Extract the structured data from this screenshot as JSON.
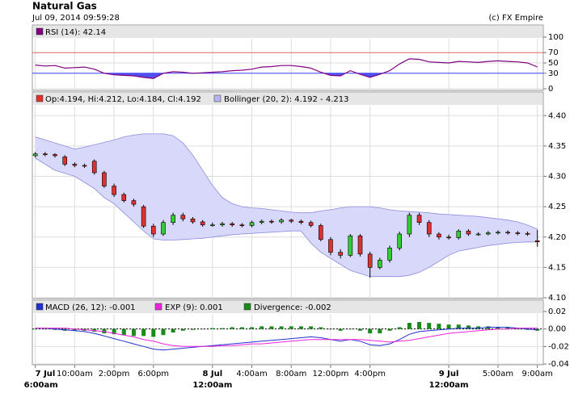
{
  "header": {
    "title": "Natural Gas",
    "timestamp": "Jul 09, 2014 09:59:28",
    "source": "(c) FX Empire"
  },
  "chart_data": [
    {
      "type": "line",
      "ylim": [
        0,
        100
      ],
      "yticks": [
        0,
        30,
        50,
        70,
        100
      ],
      "grid": true,
      "ref_lines": [
        {
          "value": 70,
          "color": "#e07070"
        },
        {
          "value": 30,
          "color": "#4040ff"
        }
      ],
      "fill_below": {
        "value": 30,
        "color": "#5050f0"
      },
      "series": [
        {
          "name": "RSI (14): 42.14",
          "color": "#800080",
          "values": [
            46,
            44,
            45,
            40,
            41,
            42,
            38,
            30,
            27,
            26,
            25,
            22,
            20,
            30,
            33,
            32,
            30,
            31,
            32,
            33,
            35,
            36,
            38,
            42,
            43,
            45,
            45,
            43,
            40,
            32,
            26,
            25,
            35,
            28,
            22,
            28,
            35,
            48,
            58,
            57,
            52,
            51,
            50,
            53,
            52,
            51,
            53,
            54,
            53,
            52,
            50,
            42.14
          ]
        }
      ]
    },
    {
      "type": "candlestick",
      "ylim": [
        4.1,
        4.415
      ],
      "yticks": [
        {
          "value": 4.1,
          "label": "4.10"
        },
        {
          "value": 4.15,
          "label": "4.15"
        },
        {
          "value": 4.2,
          "label": "4.20"
        },
        {
          "value": 4.25,
          "label": "4.25"
        },
        {
          "value": 4.3,
          "label": "4.30"
        },
        {
          "value": 4.35,
          "label": "4.35"
        },
        {
          "value": 4.4,
          "label": "4.40"
        }
      ],
      "grid": true,
      "xlim": [
        -0.3,
        51.6
      ],
      "x": [
        0,
        1,
        2,
        3,
        4,
        5,
        6,
        7,
        8,
        9,
        10,
        11,
        12,
        13,
        14,
        15,
        16,
        17,
        18,
        19,
        20,
        21,
        22,
        23,
        24,
        25,
        26,
        27,
        28,
        29,
        30,
        31,
        32,
        33,
        34,
        35,
        36,
        37,
        38,
        39,
        40,
        41,
        42,
        43,
        44,
        45,
        46,
        47,
        48,
        49,
        50,
        51
      ],
      "series": [
        {
          "name": "Op:4.194, Hi:4.212, Lo:4.184, Cl:4.192",
          "color": "#e03030",
          "up_color": "#33cc33",
          "down_color": "#e03030",
          "open": [
            4.334,
            4.337,
            4.336,
            4.332,
            4.32,
            4.318,
            4.325,
            4.306,
            4.284,
            4.27,
            4.26,
            4.25,
            4.218,
            4.205,
            4.224,
            4.236,
            4.23,
            4.225,
            4.22,
            4.22,
            4.222,
            4.22,
            4.219,
            4.224,
            4.226,
            4.225,
            4.228,
            4.226,
            4.224,
            4.219,
            4.196,
            4.175,
            4.17,
            4.202,
            4.172,
            4.15,
            4.162,
            4.182,
            4.205,
            4.236,
            4.224,
            4.205,
            4.2,
            4.199,
            4.21,
            4.205,
            4.205,
            4.207,
            4.208,
            4.207,
            4.206,
            4.194
          ],
          "high": [
            4.34,
            4.34,
            4.338,
            4.335,
            4.323,
            4.321,
            4.328,
            4.309,
            4.288,
            4.273,
            4.263,
            4.253,
            4.222,
            4.228,
            4.24,
            4.24,
            4.233,
            4.228,
            4.224,
            4.225,
            4.225,
            4.223,
            4.227,
            4.229,
            4.229,
            4.231,
            4.23,
            4.229,
            4.227,
            4.222,
            4.2,
            4.18,
            4.205,
            4.205,
            4.176,
            4.166,
            4.186,
            4.209,
            4.24,
            4.24,
            4.228,
            4.208,
            4.204,
            4.213,
            4.213,
            4.208,
            4.21,
            4.211,
            4.211,
            4.21,
            4.209,
            4.212
          ],
          "low": [
            4.331,
            4.333,
            4.331,
            4.317,
            4.315,
            4.314,
            4.303,
            4.281,
            4.266,
            4.257,
            4.25,
            4.215,
            4.2,
            4.202,
            4.22,
            4.226,
            4.222,
            4.217,
            4.217,
            4.217,
            4.217,
            4.216,
            4.216,
            4.221,
            4.222,
            4.222,
            4.223,
            4.221,
            4.216,
            4.193,
            4.17,
            4.165,
            4.167,
            4.168,
            4.133,
            4.147,
            4.158,
            4.178,
            4.2,
            4.22,
            4.2,
            4.196,
            4.196,
            4.196,
            4.202,
            4.202,
            4.203,
            4.204,
            4.204,
            4.203,
            4.202,
            4.184
          ],
          "close": [
            4.337,
            4.336,
            4.334,
            4.32,
            4.318,
            4.317,
            4.306,
            4.284,
            4.27,
            4.26,
            4.254,
            4.218,
            4.205,
            4.224,
            4.236,
            4.23,
            4.225,
            4.22,
            4.22,
            4.222,
            4.22,
            4.219,
            4.224,
            4.226,
            4.225,
            4.228,
            4.226,
            4.224,
            4.219,
            4.196,
            4.175,
            4.17,
            4.202,
            4.172,
            4.15,
            4.162,
            4.182,
            4.205,
            4.236,
            4.224,
            4.205,
            4.2,
            4.199,
            4.21,
            4.205,
            4.205,
            4.207,
            4.208,
            4.207,
            4.206,
            4.205,
            4.192
          ]
        },
        {
          "name": "Bollinger (20, 2): 4.192 - 4.213",
          "color": "#b4b4f0",
          "fill": "#d8d8fa",
          "stroke": "#8c8ce0",
          "upper": [
            4.365,
            4.36,
            4.355,
            4.35,
            4.345,
            4.348,
            4.352,
            4.356,
            4.36,
            4.365,
            4.368,
            4.37,
            4.37,
            4.37,
            4.367,
            4.355,
            4.335,
            4.31,
            4.285,
            4.265,
            4.255,
            4.25,
            4.248,
            4.247,
            4.245,
            4.243,
            4.241,
            4.24,
            4.24,
            4.243,
            4.245,
            4.248,
            4.25,
            4.25,
            4.25,
            4.248,
            4.245,
            4.243,
            4.242,
            4.241,
            4.24,
            4.238,
            4.237,
            4.236,
            4.235,
            4.234,
            4.232,
            4.23,
            4.228,
            4.225,
            4.22,
            4.213
          ],
          "lower": [
            4.33,
            4.32,
            4.31,
            4.305,
            4.3,
            4.29,
            4.28,
            4.265,
            4.255,
            4.24,
            4.225,
            4.21,
            4.197,
            4.195,
            4.195,
            4.196,
            4.197,
            4.198,
            4.2,
            4.202,
            4.204,
            4.205,
            4.206,
            4.207,
            4.208,
            4.209,
            4.21,
            4.21,
            4.19,
            4.175,
            4.165,
            4.155,
            4.145,
            4.14,
            4.135,
            4.135,
            4.135,
            4.135,
            4.137,
            4.142,
            4.15,
            4.16,
            4.17,
            4.177,
            4.18,
            4.183,
            4.186,
            4.188,
            4.19,
            4.191,
            4.192,
            4.192
          ]
        }
      ]
    },
    {
      "type": "macd",
      "ylim": [
        -0.04,
        0.02
      ],
      "yticks": [
        -0.04,
        -0.02,
        {
          "value": 0,
          "label": "0.00"
        },
        0.02
      ],
      "grid": true,
      "xticks": [
        {
          "value": 0,
          "label": "6:00am",
          "date": "7 Jul"
        },
        {
          "value": 4,
          "label": "10:00am"
        },
        {
          "value": 8,
          "label": "2:00pm"
        },
        {
          "value": 12,
          "label": "6:00pm"
        },
        {
          "value": 18,
          "label": "12:00am",
          "date": "8 Jul"
        },
        {
          "value": 22,
          "label": "4:00am"
        },
        {
          "value": 26,
          "label": "8:00am"
        },
        {
          "value": 30,
          "label": "12:00pm"
        },
        {
          "value": 34,
          "label": "4:00pm"
        },
        {
          "value": 42,
          "label": "12:00am",
          "date": "9 Jul"
        },
        {
          "value": 47,
          "label": "5:00am"
        },
        {
          "value": 51,
          "label": "9:00am"
        }
      ],
      "series": [
        {
          "name": "MACD (26, 12): -0.001",
          "color": "#2030d0",
          "kind": "line",
          "values": [
            0.001,
            0.001,
            0.0,
            -0.001,
            -0.002,
            -0.003,
            -0.005,
            -0.008,
            -0.011,
            -0.014,
            -0.017,
            -0.02,
            -0.023,
            -0.024,
            -0.023,
            -0.022,
            -0.021,
            -0.02,
            -0.019,
            -0.018,
            -0.017,
            -0.016,
            -0.015,
            -0.014,
            -0.013,
            -0.012,
            -0.011,
            -0.01,
            -0.009,
            -0.01,
            -0.012,
            -0.014,
            -0.012,
            -0.014,
            -0.018,
            -0.019,
            -0.017,
            -0.012,
            -0.006,
            -0.003,
            -0.002,
            -0.001,
            0.0,
            0.001,
            0.001,
            0.001,
            0.002,
            0.002,
            0.002,
            0.001,
            0.0,
            -0.001
          ]
        },
        {
          "name": "EXP (9): 0.001",
          "color": "#ee22dd",
          "kind": "line",
          "values": [
            0.001,
            0.001,
            0.001,
            0.001,
            0.0,
            -0.001,
            -0.002,
            -0.003,
            -0.005,
            -0.007,
            -0.009,
            -0.012,
            -0.014,
            -0.017,
            -0.019,
            -0.02,
            -0.02,
            -0.02,
            -0.02,
            -0.019,
            -0.019,
            -0.018,
            -0.017,
            -0.017,
            -0.016,
            -0.015,
            -0.014,
            -0.013,
            -0.012,
            -0.012,
            -0.012,
            -0.012,
            -0.012,
            -0.012,
            -0.013,
            -0.014,
            -0.015,
            -0.014,
            -0.013,
            -0.011,
            -0.009,
            -0.007,
            -0.005,
            -0.004,
            -0.003,
            -0.002,
            -0.001,
            0.0,
            0.0,
            0.001,
            0.001,
            0.001
          ]
        },
        {
          "name": "Divergence: -0.002",
          "color": "#1a8a1a",
          "kind": "bar",
          "values": [
            0,
            0,
            -0.001,
            -0.002,
            -0.002,
            -0.002,
            -0.003,
            -0.005,
            -0.006,
            -0.007,
            -0.008,
            -0.008,
            -0.009,
            -0.007,
            -0.004,
            -0.002,
            -0.001,
            0,
            0.001,
            0.001,
            0.002,
            0.002,
            0.002,
            0.003,
            0.003,
            0.003,
            0.003,
            0.003,
            0.003,
            0.002,
            0,
            -0.002,
            0,
            -0.002,
            -0.005,
            -0.005,
            -0.002,
            0.002,
            0.007,
            0.008,
            0.007,
            0.006,
            0.005,
            0.005,
            0.004,
            0.003,
            0.003,
            0.002,
            0.002,
            0,
            -0.001,
            -0.002
          ]
        }
      ]
    }
  ]
}
